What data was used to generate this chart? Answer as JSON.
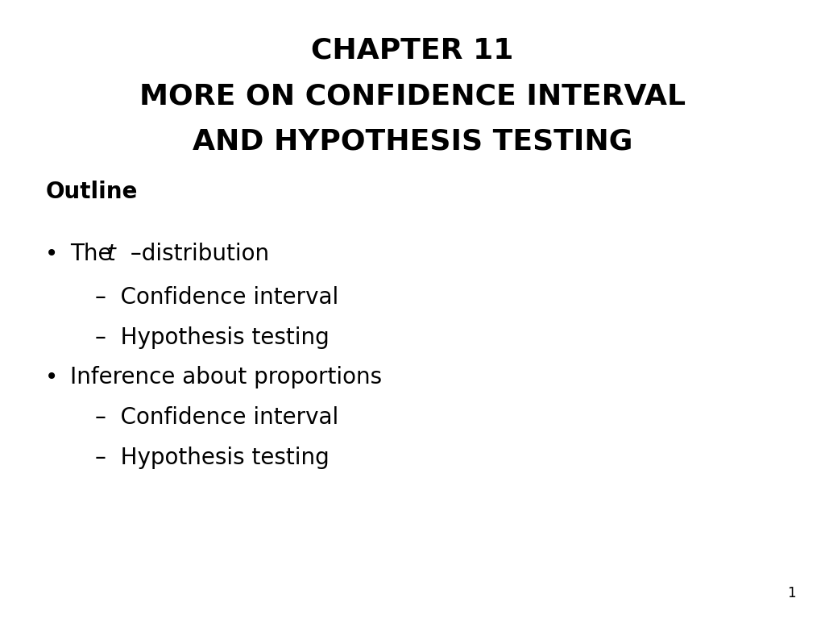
{
  "title_line1": "CHAPTER 11",
  "title_line2": "MORE ON CONFIDENCE INTERVAL",
  "title_line3": "AND HYPOTHESIS TESTING",
  "section_label": "Outline",
  "sub1_1": "Confidence interval",
  "sub1_2": "Hypothesis testing",
  "bullet2": "Inference about proportions",
  "sub2_1": "Confidence interval",
  "sub2_2": "Hypothesis testing",
  "page_number": "1",
  "bg_color": "#ffffff",
  "text_color": "#000000",
  "title_fontsize": 26,
  "section_fontsize": 20,
  "bullet_fontsize": 20,
  "sub_fontsize": 20,
  "page_fontsize": 12
}
